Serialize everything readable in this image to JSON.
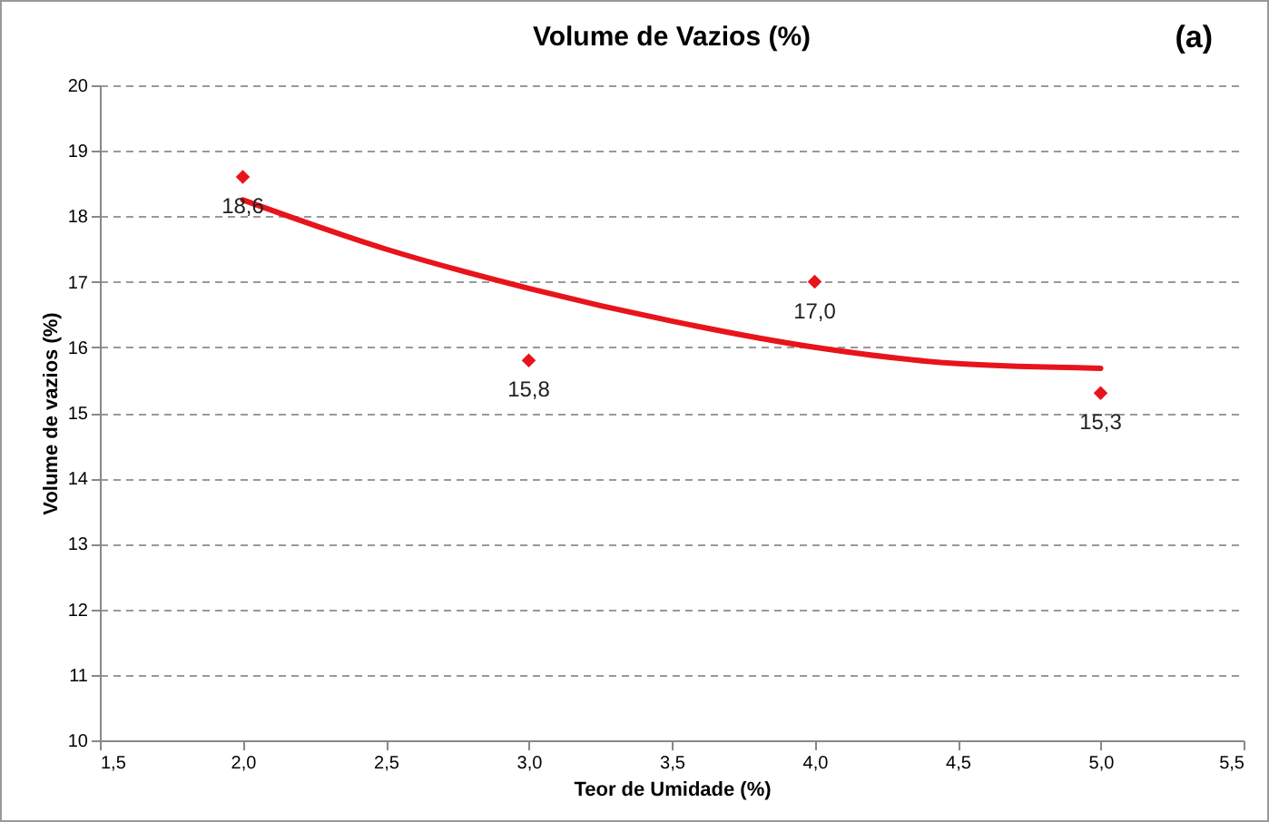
{
  "chart_data": {
    "type": "scatter",
    "title": "Volume de Vazios  (%)",
    "xlabel": "Teor de Umidade (%)",
    "ylabel": "Volume de vazios (%)",
    "annotations": [
      "(a)"
    ],
    "xlim": [
      1.5,
      5.5
    ],
    "xticks": [
      {
        "value": 1.5,
        "label": "1,5"
      },
      {
        "value": 2,
        "label": "2,0"
      },
      {
        "value": 2.5,
        "label": "2,5"
      },
      {
        "value": 3,
        "label": "3,0"
      },
      {
        "value": 3.5,
        "label": "3,5"
      },
      {
        "value": 4,
        "label": "4,0"
      },
      {
        "value": 4.5,
        "label": "4,5"
      },
      {
        "value": 5,
        "label": "5,0"
      },
      {
        "value": 5.5,
        "label": "5,5"
      }
    ],
    "ylim": [
      10,
      20
    ],
    "yticks": [
      10,
      11,
      12,
      13,
      14,
      15,
      16,
      17,
      18,
      19,
      20
    ],
    "grid": "y",
    "series": [
      {
        "type": "scatter",
        "color": "#e8141b",
        "x": [
          2,
          3,
          4,
          5
        ],
        "values": [
          18.6,
          15.8,
          17.0,
          15.3
        ],
        "value_labels": [
          "18,6",
          "15,8",
          "17,0",
          "15,3"
        ],
        "marker": "diamond"
      },
      {
        "type": "line",
        "color": "#e8141b",
        "x": [
          2,
          2.5,
          3,
          3.5,
          4,
          4.5,
          5
        ],
        "values": [
          18.25,
          17.5,
          16.9,
          16.4,
          16.0,
          15.75,
          15.68
        ],
        "line_style": "solid"
      }
    ]
  }
}
